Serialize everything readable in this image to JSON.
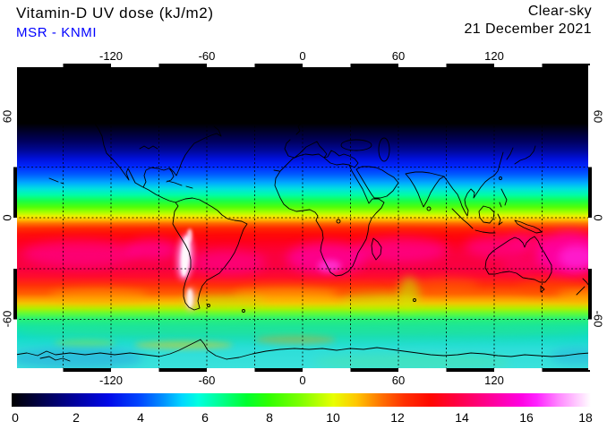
{
  "header": {
    "title": "Vitamin-D UV dose (kJ/m2)",
    "source": "MSR - KNMI",
    "source_color": "#0000ff",
    "condition": "Clear-sky",
    "date": "21 December 2021"
  },
  "axes": {
    "top": [
      "-120",
      "-60",
      "0",
      "60",
      "120"
    ],
    "bottom": [
      "-120",
      "-60",
      "0",
      "60",
      "120"
    ],
    "left": [
      "60",
      "0",
      "-60"
    ],
    "right": [
      "60",
      "0",
      "-60"
    ]
  },
  "colorbar": {
    "min": 0,
    "max": 18,
    "unit": "kJ/m2",
    "ticks": [
      "0",
      "2",
      "4",
      "6",
      "8",
      "10",
      "12",
      "14",
      "16",
      "18"
    ],
    "stops": [
      {
        "v": 0,
        "c": "#000000"
      },
      {
        "v": 1,
        "c": "#000050"
      },
      {
        "v": 2,
        "c": "#0000A0"
      },
      {
        "v": 3,
        "c": "#0008E8"
      },
      {
        "v": 4,
        "c": "#0048FF"
      },
      {
        "v": 4.7,
        "c": "#0090FF"
      },
      {
        "v": 5.3,
        "c": "#00D8FF"
      },
      {
        "v": 5.8,
        "c": "#00FFE0"
      },
      {
        "v": 6.5,
        "c": "#00FF90"
      },
      {
        "v": 7.3,
        "c": "#00FF30"
      },
      {
        "v": 8,
        "c": "#30FF00"
      },
      {
        "v": 9,
        "c": "#80FF00"
      },
      {
        "v": 10,
        "c": "#E8FF00"
      },
      {
        "v": 10.7,
        "c": "#FFC800"
      },
      {
        "v": 11.5,
        "c": "#FF7000"
      },
      {
        "v": 12.2,
        "c": "#FF3000"
      },
      {
        "v": 13,
        "c": "#FF0800"
      },
      {
        "v": 13.8,
        "c": "#FF0040"
      },
      {
        "v": 14.8,
        "c": "#FF0090"
      },
      {
        "v": 15.8,
        "c": "#FF00E0"
      },
      {
        "v": 16.3,
        "c": "#FF20FF"
      },
      {
        "v": 17,
        "c": "#FF88FF"
      },
      {
        "v": 18,
        "c": "#FFFFFF"
      }
    ]
  },
  "map": {
    "lat_gradient": [
      {
        "o": 0,
        "c": "#000000"
      },
      {
        "o": 19,
        "c": "#000000"
      },
      {
        "o": 22,
        "c": "#000030"
      },
      {
        "o": 25,
        "c": "#000060"
      },
      {
        "o": 28,
        "c": "#000898"
      },
      {
        "o": 30.5,
        "c": "#0010D8"
      },
      {
        "o": 33.3,
        "c": "#0028FF"
      },
      {
        "o": 36,
        "c": "#0060FF"
      },
      {
        "o": 38.5,
        "c": "#00A8FF"
      },
      {
        "o": 40.5,
        "c": "#00E0E0"
      },
      {
        "o": 42.5,
        "c": "#00FCA8"
      },
      {
        "o": 44.5,
        "c": "#18FF48"
      },
      {
        "o": 46.5,
        "c": "#50FF08"
      },
      {
        "o": 48.3,
        "c": "#A8FF00"
      },
      {
        "o": 49.6,
        "c": "#F0F000"
      },
      {
        "o": 50.8,
        "c": "#FFB800"
      },
      {
        "o": 52,
        "c": "#FF7000"
      },
      {
        "o": 53.5,
        "c": "#FF3400"
      },
      {
        "o": 55.5,
        "c": "#FF100C"
      },
      {
        "o": 58,
        "c": "#FF0020"
      },
      {
        "o": 62,
        "c": "#FC0038"
      },
      {
        "o": 66.7,
        "c": "#F80040"
      },
      {
        "o": 69.4,
        "c": "#FF0C2C"
      },
      {
        "o": 72.2,
        "c": "#FF3008"
      },
      {
        "o": 75,
        "c": "#FF6000"
      },
      {
        "o": 76.6,
        "c": "#FF9800"
      },
      {
        "o": 78.2,
        "c": "#F0C800"
      },
      {
        "o": 79.8,
        "c": "#B0F000"
      },
      {
        "o": 81.5,
        "c": "#60FC38"
      },
      {
        "o": 83.3,
        "c": "#28F078"
      },
      {
        "o": 86,
        "c": "#14E4A8"
      },
      {
        "o": 89,
        "c": "#10DCC8"
      },
      {
        "o": 93,
        "c": "#2CDED8"
      },
      {
        "o": 100,
        "c": "#3CE2DC"
      }
    ]
  },
  "chart_data": {
    "type": "heatmap",
    "title": "Vitamin-D UV dose (kJ/m2)",
    "dataset": "MSR - KNMI",
    "sky": "Clear-sky",
    "date": "21 December 2021",
    "projection": "equirectangular world map",
    "lon_range": [
      -180,
      180
    ],
    "lat_range": [
      -90,
      90
    ],
    "lon_ticks": [
      -120,
      -60,
      0,
      60,
      120
    ],
    "lat_ticks": [
      60,
      0,
      -60
    ],
    "grid": "dashed 30-degree graticule, black coastlines",
    "colorbar_range": [
      0,
      18
    ],
    "colorbar_ticks": [
      0,
      2,
      4,
      6,
      8,
      10,
      12,
      14,
      16,
      18
    ],
    "unit": "kJ/m2",
    "zonal_mean_profile": [
      {
        "lat": 90,
        "value": 0
      },
      {
        "lat": 60,
        "value": 0
      },
      {
        "lat": 50,
        "value": 0.5
      },
      {
        "lat": 40,
        "value": 2
      },
      {
        "lat": 30,
        "value": 3.5
      },
      {
        "lat": 20,
        "value": 5.5
      },
      {
        "lat": 10,
        "value": 7.5
      },
      {
        "lat": 0,
        "value": 10.5
      },
      {
        "lat": -10,
        "value": 13
      },
      {
        "lat": -20,
        "value": 14
      },
      {
        "lat": -30,
        "value": 14.5
      },
      {
        "lat": -40,
        "value": 12.5
      },
      {
        "lat": -50,
        "value": 10.5
      },
      {
        "lat": -60,
        "value": 7.5
      },
      {
        "lat": -70,
        "value": 6
      },
      {
        "lat": -80,
        "value": 5.5
      },
      {
        "lat": -90,
        "value": 5.5
      }
    ],
    "features": [
      "Polar night: value 0 (black) north of about 55N",
      "Maximum 17-18 (white) streak along the Andes, 12S-35S",
      "Magenta band (14-16) across 15S-35S, strongest east of Australia and over southern Africa",
      "Yellow-green minimum belt around 50-60S",
      "Antarctica about 5-6 (cyan) with warmer streaks near the coast"
    ]
  }
}
